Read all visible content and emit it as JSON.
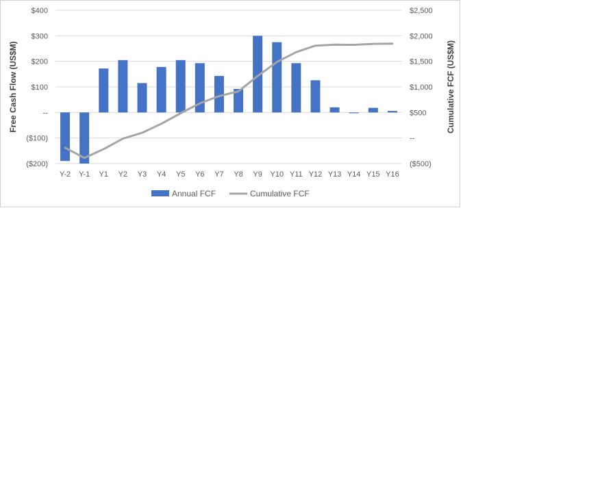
{
  "chart_data": {
    "type": "bar",
    "categories": [
      "Y-2",
      "Y-1",
      "Y1",
      "Y2",
      "Y3",
      "Y4",
      "Y5",
      "Y6",
      "Y7",
      "Y8",
      "Y9",
      "Y10",
      "Y11",
      "Y12",
      "Y13",
      "Y14",
      "Y15",
      "Y16"
    ],
    "series": [
      {
        "name": "Annual FCF",
        "type": "bar",
        "axis": "left",
        "color": "#4472C4",
        "values": [
          -190,
          -200,
          172,
          205,
          115,
          178,
          205,
          193,
          143,
          92,
          300,
          275,
          193,
          126,
          20,
          -3,
          18,
          6
        ]
      },
      {
        "name": "Cumulative FCF",
        "type": "line",
        "axis": "right",
        "color": "#A5A5A5",
        "values": [
          -190,
          -390,
          -218,
          -13,
          102,
          280,
          485,
          678,
          821,
          913,
          1213,
          1488,
          1681,
          1807,
          1827,
          1824,
          1842,
          1848
        ]
      }
    ],
    "ylabel": "Free Cash Flow (US$M)",
    "y2label": "Cumulative FCF (US$M)",
    "ylim": [
      -200,
      400
    ],
    "y2lim": [
      -500,
      2500
    ],
    "yticks": [
      -200,
      -100,
      0,
      100,
      200,
      300,
      400
    ],
    "yticklabels": [
      "($200)",
      "($100)",
      "--",
      "$100",
      "$200",
      "$300",
      "$400"
    ],
    "y2ticks": [
      -500,
      0,
      500,
      1000,
      1500,
      2000,
      2500
    ],
    "y2ticklabels": [
      "($500)",
      "--",
      "$500",
      "$1,000",
      "$1,500",
      "$2,000",
      "$2,500"
    ],
    "grid": true,
    "legend": "bottom"
  }
}
